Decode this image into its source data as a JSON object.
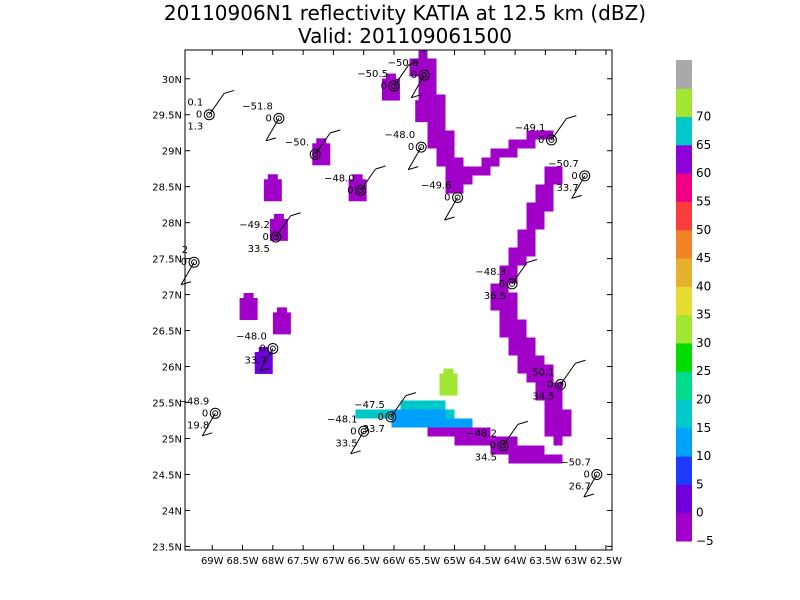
{
  "chart_data": {
    "type": "heatmap",
    "title": "20110906N1 reflectivity KATIA at 12.5 km (dBZ)",
    "subtitle": "Valid: 201109061500",
    "xlabel": "",
    "ylabel": "",
    "xlim": [
      -69.45,
      -62.4
    ],
    "ylim": [
      23.45,
      30.4
    ],
    "x_ticks": [
      {
        "v": -69,
        "label": "69W"
      },
      {
        "v": -68.5,
        "label": "68.5W"
      },
      {
        "v": -68,
        "label": "68W"
      },
      {
        "v": -67.5,
        "label": "67.5W"
      },
      {
        "v": -67,
        "label": "67W"
      },
      {
        "v": -66.5,
        "label": "66.5W"
      },
      {
        "v": -66,
        "label": "66W"
      },
      {
        "v": -65.5,
        "label": "65.5W"
      },
      {
        "v": -65,
        "label": "65W"
      },
      {
        "v": -64.5,
        "label": "64.5W"
      },
      {
        "v": -64,
        "label": "64W"
      },
      {
        "v": -63.5,
        "label": "63.5W"
      },
      {
        "v": -63,
        "label": "63W"
      },
      {
        "v": -62.5,
        "label": "62.5W"
      }
    ],
    "y_ticks": [
      {
        "v": 23.5,
        "label": "23.5N"
      },
      {
        "v": 24,
        "label": "24N"
      },
      {
        "v": 24.5,
        "label": "24.5N"
      },
      {
        "v": 25,
        "label": "25N"
      },
      {
        "v": 25.5,
        "label": "25.5N"
      },
      {
        "v": 26,
        "label": "26N"
      },
      {
        "v": 26.5,
        "label": "26.5N"
      },
      {
        "v": 27,
        "label": "27N"
      },
      {
        "v": 27.5,
        "label": "27.5N"
      },
      {
        "v": 28,
        "label": "28N"
      },
      {
        "v": 28.5,
        "label": "28.5N"
      },
      {
        "v": 29,
        "label": "29N"
      },
      {
        "v": 29.5,
        "label": "29.5N"
      },
      {
        "v": 30,
        "label": "30N"
      }
    ],
    "grid": false,
    "colorbar": {
      "placement": "right",
      "levels": [
        {
          "label": "−5",
          "color": "#a000c8"
        },
        {
          "label": "0",
          "color": "#6e00dc"
        },
        {
          "label": "5",
          "color": "#1e3cff"
        },
        {
          "label": "10",
          "color": "#00a0ff"
        },
        {
          "label": "15",
          "color": "#00c8c8"
        },
        {
          "label": "20",
          "color": "#00dc8c"
        },
        {
          "label": "25",
          "color": "#00dc00"
        },
        {
          "label": "30",
          "color": "#a0e632"
        },
        {
          "label": "35",
          "color": "#e6dc32"
        },
        {
          "label": "40",
          "color": "#e6af2d"
        },
        {
          "label": "45",
          "color": "#f08228"
        },
        {
          "label": "50",
          "color": "#fa3c3c"
        },
        {
          "label": "55",
          "color": "#f00082"
        },
        {
          "label": "60",
          "color": "#8c00dc"
        },
        {
          "label": "65",
          "color": "#00c8c8"
        },
        {
          "label": "70",
          "color": "#a0e632"
        },
        {
          "label": "",
          "color": "#a9a9a9"
        }
      ]
    },
    "reflectivity_swaths": [
      {
        "name": "track-ne",
        "dbz": -5,
        "points": [
          [
            -63.35,
            28.7
          ],
          [
            -63.65,
            28.05
          ],
          [
            -63.95,
            27.45
          ],
          [
            -64.25,
            27.05
          ],
          [
            -63.95,
            26.35
          ],
          [
            -63.6,
            25.9
          ],
          [
            -63.35,
            25.45
          ],
          [
            -63.25,
            25.0
          ]
        ]
      },
      {
        "name": "track-east-diag",
        "dbz": -5,
        "points": [
          [
            -64.95,
            28.5
          ],
          [
            -64.55,
            28.75
          ],
          [
            -64.1,
            29.0
          ],
          [
            -63.55,
            29.2
          ]
        ]
      },
      {
        "name": "track-north",
        "dbz": -5,
        "points": [
          [
            -65.55,
            30.3
          ],
          [
            -65.45,
            29.9
          ],
          [
            -65.2,
            29.1
          ],
          [
            -64.95,
            28.65
          ]
        ]
      },
      {
        "name": "track-south",
        "dbz": -5,
        "points": [
          [
            -65.3,
            25.15
          ],
          [
            -64.9,
            25.05
          ],
          [
            -64.4,
            24.95
          ],
          [
            -63.9,
            24.8
          ],
          [
            -63.45,
            24.7
          ]
        ]
      },
      {
        "name": "swath-south-green",
        "dbz": 15,
        "points": [
          [
            -66.5,
            25.35
          ],
          [
            -66.0,
            25.35
          ],
          [
            -65.6,
            25.4
          ],
          [
            -65.2,
            25.35
          ]
        ]
      },
      {
        "name": "swath-south-blue",
        "dbz": 10,
        "points": [
          [
            -65.9,
            25.3
          ],
          [
            -65.4,
            25.25
          ],
          [
            -64.9,
            25.2
          ]
        ]
      }
    ],
    "reflectivity_blobs": [
      {
        "lon": -66.05,
        "lat": 29.85,
        "dbz": -5
      },
      {
        "lon": -65.5,
        "lat": 29.55,
        "dbz": -5
      },
      {
        "lon": -67.2,
        "lat": 28.95,
        "dbz": -5
      },
      {
        "lon": -68.0,
        "lat": 28.45,
        "dbz": -5
      },
      {
        "lon": -66.6,
        "lat": 28.45,
        "dbz": -5
      },
      {
        "lon": -67.9,
        "lat": 27.9,
        "dbz": -5
      },
      {
        "lon": -68.4,
        "lat": 26.8,
        "dbz": -5
      },
      {
        "lon": -67.85,
        "lat": 26.6,
        "dbz": -5
      },
      {
        "lon": -68.15,
        "lat": 26.05,
        "dbz": 0
      },
      {
        "lon": -65.1,
        "lat": 25.75,
        "dbz": 30
      }
    ],
    "observations": [
      {
        "lon": -69.05,
        "lat": 29.5,
        "labels": {
          "ul": "0.1",
          "l": "0",
          "ll": "1.3"
        }
      },
      {
        "lon": -67.9,
        "lat": 29.45,
        "labels": {
          "ul": "−51.8",
          "l": "0"
        }
      },
      {
        "lon": -66.0,
        "lat": 29.9,
        "labels": {
          "ul": "−50.5",
          "l": "0"
        }
      },
      {
        "lon": -65.5,
        "lat": 30.05,
        "labels": {
          "ul": "−50.6",
          "l": "0"
        }
      },
      {
        "lon": -67.3,
        "lat": 28.95,
        "labels": {
          "ul": "−50."
        }
      },
      {
        "lon": -65.55,
        "lat": 29.05,
        "labels": {
          "ul": "−48.0",
          "l": "0"
        }
      },
      {
        "lon": -66.55,
        "lat": 28.45,
        "labels": {
          "ul": "−48.0",
          "l": "0"
        }
      },
      {
        "lon": -64.95,
        "lat": 28.35,
        "labels": {
          "ul": "−49.6",
          "l": "0"
        }
      },
      {
        "lon": -63.4,
        "lat": 29.15,
        "labels": {
          "ul": "−49.1",
          "l": "0"
        }
      },
      {
        "lon": -62.85,
        "lat": 28.65,
        "labels": {
          "ul": "−50.7",
          "l": "0",
          "ll": "33.7"
        }
      },
      {
        "lon": -67.95,
        "lat": 27.8,
        "labels": {
          "ul": "−49.2",
          "l": "0",
          "ll": "33.5"
        }
      },
      {
        "lon": -69.3,
        "lat": 27.45,
        "labels": {
          "ul": "2",
          "l": "0"
        }
      },
      {
        "lon": -64.05,
        "lat": 27.15,
        "labels": {
          "ul": "−48.3",
          "l": "0",
          "ll": "36.5"
        }
      },
      {
        "lon": -68.0,
        "lat": 26.25,
        "labels": {
          "ul": "−48.0",
          "l": "0",
          "ll": "33.7"
        }
      },
      {
        "lon": -63.25,
        "lat": 25.75,
        "labels": {
          "ul": "50.1",
          "l": "0",
          "ll": "34.5"
        }
      },
      {
        "lon": -68.95,
        "lat": 25.35,
        "labels": {
          "ul": "−48.9",
          "l": "0",
          "ll": "19.8"
        }
      },
      {
        "lon": -66.05,
        "lat": 25.3,
        "labels": {
          "ul": "−47.5",
          "l": "0",
          "ll": "33.7"
        }
      },
      {
        "lon": -66.5,
        "lat": 25.1,
        "labels": {
          "ul": "−48.1",
          "l": "0",
          "ll": "33.5"
        }
      },
      {
        "lon": -64.2,
        "lat": 24.9,
        "labels": {
          "ul": "−48.2",
          "l": "0",
          "ll": "34.5"
        }
      },
      {
        "lon": -62.65,
        "lat": 24.5,
        "labels": {
          "ul": "−50.7",
          "l": "0",
          "ll": "26.7"
        }
      }
    ]
  }
}
